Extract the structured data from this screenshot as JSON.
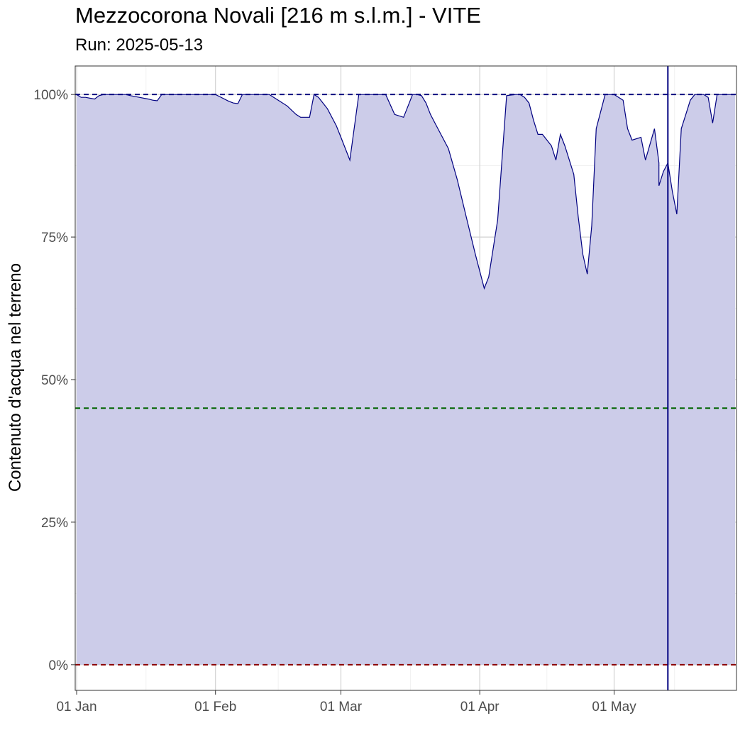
{
  "chart_data": {
    "type": "area",
    "title": "Mezzocorona Novali [216 m s.l.m.] - VITE",
    "subtitle": "Run: 2025-05-13",
    "xlabel": "",
    "ylabel": "Contenuto d'acqua nel terreno",
    "xlim": [
      "2025-01-01",
      "2025-05-28"
    ],
    "ylim": [
      -4.5,
      105
    ],
    "grid": true,
    "legend": "none",
    "x_ticks": [
      {
        "date": "2025-01-01",
        "label": "01 Jan"
      },
      {
        "date": "2025-02-01",
        "label": "01 Feb"
      },
      {
        "date": "2025-03-01",
        "label": "01 Mar"
      },
      {
        "date": "2025-04-01",
        "label": "01 Apr"
      },
      {
        "date": "2025-05-01",
        "label": "01 May"
      }
    ],
    "y_ticks": [
      {
        "value": 0,
        "label": "0%"
      },
      {
        "value": 25,
        "label": "25%"
      },
      {
        "value": 50,
        "label": "50%"
      },
      {
        "value": 75,
        "label": "75%"
      },
      {
        "value": 100,
        "label": "100%"
      }
    ],
    "reference_lines": [
      {
        "value": 100,
        "color": "#000080",
        "style": "dashed"
      },
      {
        "value": 45,
        "color": "#006400",
        "style": "dashed"
      },
      {
        "value": 0,
        "color": "#8b0000",
        "style": "dashed"
      }
    ],
    "run_date_line": {
      "date": "2025-05-13",
      "color": "#000080"
    },
    "series": [
      {
        "color": "#000080",
        "fill": "#cccce9",
        "x": [
          "2025-01-01",
          "2025-01-02",
          "2025-01-03",
          "2025-01-05",
          "2025-01-06",
          "2025-01-07",
          "2025-01-08",
          "2025-01-10",
          "2025-01-12",
          "2025-01-13",
          "2025-01-15",
          "2025-01-17",
          "2025-01-18",
          "2025-01-19",
          "2025-01-20",
          "2025-01-22",
          "2025-01-23",
          "2025-01-24",
          "2025-01-26",
          "2025-01-27",
          "2025-01-29",
          "2025-01-31",
          "2025-02-01",
          "2025-02-02",
          "2025-02-04",
          "2025-02-05",
          "2025-02-06",
          "2025-02-07",
          "2025-02-08",
          "2025-02-09",
          "2025-02-11",
          "2025-02-13",
          "2025-02-14",
          "2025-02-15",
          "2025-02-17",
          "2025-02-19",
          "2025-02-20",
          "2025-02-22",
          "2025-02-23",
          "2025-02-24",
          "2025-02-25",
          "2025-02-26",
          "2025-02-28",
          "2025-03-01",
          "2025-03-03",
          "2025-03-05",
          "2025-03-07",
          "2025-03-08",
          "2025-03-09",
          "2025-03-11",
          "2025-03-13",
          "2025-03-15",
          "2025-03-17",
          "2025-03-18",
          "2025-03-19",
          "2025-03-20",
          "2025-03-21",
          "2025-03-22",
          "2025-03-24",
          "2025-03-25",
          "2025-03-27",
          "2025-03-29",
          "2025-03-31",
          "2025-04-02",
          "2025-04-03",
          "2025-04-05",
          "2025-04-07",
          "2025-04-09",
          "2025-04-10",
          "2025-04-11",
          "2025-04-12",
          "2025-04-13",
          "2025-04-14",
          "2025-04-15",
          "2025-04-17",
          "2025-04-18",
          "2025-04-19",
          "2025-04-20",
          "2025-04-22",
          "2025-04-23",
          "2025-04-24",
          "2025-04-25",
          "2025-04-26",
          "2025-04-27",
          "2025-04-29",
          "2025-04-30",
          "2025-05-01",
          "2025-05-02",
          "2025-05-03",
          "2025-05-04",
          "2025-05-05",
          "2025-05-07",
          "2025-05-08",
          "2025-05-10",
          "2025-05-11",
          "2025-05-11",
          "2025-05-12",
          "2025-05-13",
          "2025-05-14",
          "2025-05-15",
          "2025-05-16",
          "2025-05-17",
          "2025-05-18",
          "2025-05-19",
          "2025-05-20",
          "2025-05-21",
          "2025-05-22",
          "2025-05-23",
          "2025-05-24",
          "2025-05-25",
          "2025-05-26",
          "2025-05-27",
          "2025-05-28"
        ],
        "y": [
          100,
          99.5,
          99.5,
          99.2,
          99.8,
          100,
          100,
          100,
          100,
          99.8,
          99.5,
          99.2,
          99.0,
          98.9,
          100,
          100,
          100,
          100,
          100,
          100,
          100,
          100,
          100,
          99.6,
          98.8,
          98.5,
          98.4,
          100,
          100,
          100,
          100,
          100,
          99.5,
          99.0,
          98.0,
          96.5,
          96.0,
          96.0,
          100,
          99.5,
          98.5,
          97.5,
          94.5,
          92.5,
          88.5,
          100,
          100,
          100,
          100,
          100,
          96.5,
          96.0,
          100,
          100,
          99.8,
          98.5,
          96.5,
          95.0,
          92.0,
          90.5,
          85.0,
          78.5,
          72.0,
          66.0,
          68.0,
          78.0,
          99.8,
          100,
          100,
          99.5,
          98.5,
          95.5,
          93.0,
          93.0,
          91.0,
          88.5,
          93.0,
          91.0,
          86.0,
          78.5,
          72.0,
          68.5,
          77.0,
          94.0,
          100,
          100,
          100,
          99.5,
          99.0,
          94.0,
          92.0,
          92.5,
          88.5,
          94.0,
          88.0,
          84.0,
          86.5,
          88.0,
          83.0,
          79.0,
          94.0,
          96.5,
          99.0,
          100,
          100,
          100,
          99.5,
          95.0,
          100,
          100,
          100,
          100,
          100
        ]
      }
    ]
  }
}
